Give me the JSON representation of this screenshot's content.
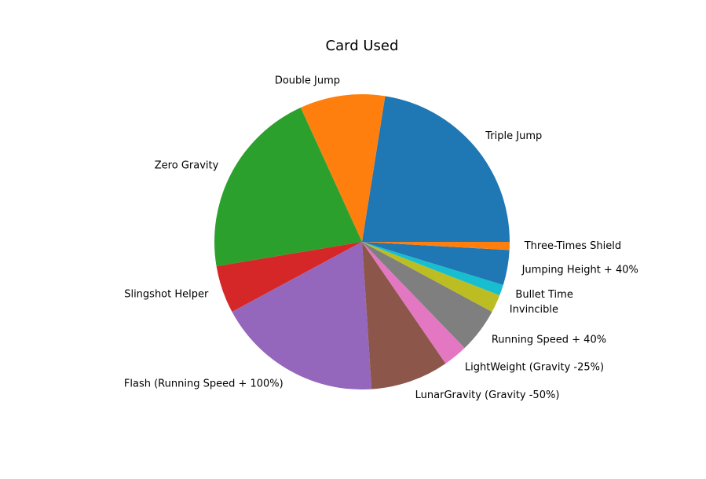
{
  "chart_data": {
    "type": "pie",
    "title": "Card Used",
    "start_angle_deg": 0,
    "direction": "counterclockwise",
    "slices": [
      {
        "label": "Triple Jump",
        "value": 22.9,
        "color": "#1f77b4"
      },
      {
        "label": "Double Jump",
        "value": 9.5,
        "color": "#ff7f0e"
      },
      {
        "label": "Zero Gravity",
        "value": 21.2,
        "color": "#2ca02c"
      },
      {
        "label": "Slingshot Helper",
        "value": 5.3,
        "color": "#d62728"
      },
      {
        "label": "Flash (Running Speed + 100%)",
        "value": 18.5,
        "color": "#9467bd"
      },
      {
        "label": "LunarGravity (Gravity -50%)",
        "value": 8.7,
        "color": "#8c564b"
      },
      {
        "label": "LightWeight (Gravity -25%)",
        "value": 2.7,
        "color": "#e377c2"
      },
      {
        "label": "Running Speed + 40%",
        "value": 5.0,
        "color": "#7f7f7f"
      },
      {
        "label": "Invincible",
        "value": 2.0,
        "color": "#bcbd22"
      },
      {
        "label": "Bullet Time",
        "value": 1.2,
        "color": "#17becf"
      },
      {
        "label": "Jumping Height + 40%",
        "value": 3.9,
        "color": "#1f77b4"
      },
      {
        "label": "Three-Times Shield",
        "value": 0.9,
        "color": "#ff7f0e"
      }
    ]
  }
}
